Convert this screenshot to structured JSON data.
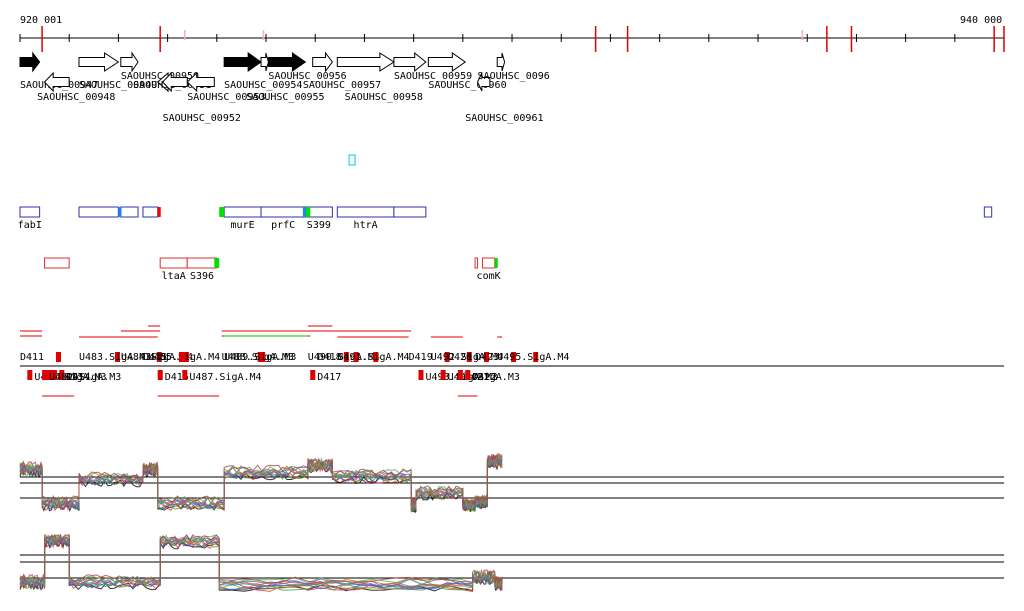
{
  "ruler": {
    "start_label": "920 001",
    "end_label": "940 000",
    "start_bp": 920001,
    "end_bp": 940000,
    "tick_step_bp": 1000,
    "red_markers_bp": [
      920450,
      922850,
      931700,
      932350,
      936400,
      936900,
      939800,
      940000
    ],
    "pink_markers_bp": [
      923350,
      924950,
      935900
    ]
  },
  "genes": [
    {
      "name": "SAOUHSC_00947",
      "start": 920001,
      "end": 920400,
      "strand": "+",
      "style": "filled",
      "label_start": 920001,
      "label_row": 0
    },
    {
      "name": "SAOUHSC_00948",
      "start": 920500,
      "end": 921000,
      "strand": "-",
      "style": "open",
      "label_start": 920350,
      "label_row": 1
    },
    {
      "name": "SAOUHSC_00949",
      "start": 921200,
      "end": 922000,
      "strand": "+",
      "style": "open",
      "label_start": 921200,
      "label_row": 0
    },
    {
      "name": "SAOUHSC_00950",
      "start": 922050,
      "end": 922400,
      "strand": "+",
      "style": "open",
      "label_start": 922050,
      "label_row": -1
    },
    {
      "name": "SAOUHSC_00951",
      "start": 922800,
      "end": 923400,
      "strand": "-",
      "style": "open",
      "label_start": 922300,
      "label_row": 0
    },
    {
      "name": "SAOUHSC_00952",
      "start": 922900,
      "end": 923400,
      "strand": "-",
      "style": "open",
      "label_start": 922900,
      "label_row": 2
    },
    {
      "name": "SAOUHSC_00953",
      "start": 923400,
      "end": 923950,
      "strand": "-",
      "style": "open",
      "label_start": 923400,
      "label_row": 1
    },
    {
      "name": "SAOUHSC_00954",
      "start": 924150,
      "end": 924900,
      "strand": "+",
      "style": "filled",
      "label_start": 924150,
      "label_row": 0
    },
    {
      "name": "SAOUHSC_00955",
      "start": 924900,
      "end": 925050,
      "strand": "+",
      "style": "open",
      "label_start": 924600,
      "label_row": 1
    },
    {
      "name": "SAOUHSC_00956",
      "start": 925050,
      "end": 925800,
      "strand": "+",
      "style": "filled",
      "label_start": 925050,
      "label_row": -1
    },
    {
      "name": "SAOUHSC_00957",
      "start": 925950,
      "end": 926350,
      "strand": "+",
      "style": "open",
      "label_start": 925750,
      "label_row": 0
    },
    {
      "name": "SAOUHSC_00958",
      "start": 926450,
      "end": 927600,
      "strand": "+",
      "style": "open",
      "label_start": 926600,
      "label_row": 1
    },
    {
      "name": "SAOUHSC_00959",
      "start": 927600,
      "end": 928250,
      "strand": "+",
      "style": "open",
      "label_start": 927600,
      "label_row": -1
    },
    {
      "name": "SAOUHSC_00960",
      "start": 928300,
      "end": 929050,
      "strand": "+",
      "style": "open",
      "label_start": 928300,
      "label_row": 0
    },
    {
      "name": "SAOUHSC_00961",
      "start": 929300,
      "end": 929550,
      "strand": "-",
      "style": "open",
      "label_start": 929050,
      "label_row": 3
    },
    {
      "name": "SAOUHSC_00962",
      "start": 929700,
      "end": 929850,
      "strand": "+",
      "style": "open",
      "label_start": 929300,
      "label_row": -1
    }
  ],
  "gene_labels": {
    "SAOUHSC_00962": "SAOUHSC_0096"
  },
  "operon_track_1": {
    "cyan_marker_bp": 926750,
    "features": [
      {
        "start": 920001,
        "end": 920400,
        "color": "#3030b0",
        "label": "fabI"
      },
      {
        "start": 921200,
        "end": 922000,
        "color": "#3030b0",
        "label": ""
      },
      {
        "start": 922050,
        "end": 922400,
        "color": "#3030b0",
        "label": ""
      },
      {
        "start": 922500,
        "end": 922800,
        "color": "#3030b0",
        "label": ""
      },
      {
        "start": 924150,
        "end": 924900,
        "color": "#3030b0",
        "label": "murE"
      },
      {
        "start": 924900,
        "end": 925800,
        "color": "#3030b0",
        "label": "prfC"
      },
      {
        "start": 925800,
        "end": 926350,
        "color": "#3030b0",
        "label": "S399"
      },
      {
        "start": 926450,
        "end": 927600,
        "color": "#3030b0",
        "label": "htrA"
      },
      {
        "start": 927600,
        "end": 928250,
        "color": "#3030b0",
        "label": ""
      },
      {
        "start": 939600,
        "end": 939750,
        "color": "#3030b0",
        "label": ""
      }
    ],
    "boxes": [
      {
        "start": 922000,
        "end": 922050,
        "color": "#2080ff"
      },
      {
        "start": 922800,
        "end": 922850,
        "color": "#ff0000"
      },
      {
        "start": 924050,
        "end": 924150,
        "color": "#00dd00"
      },
      {
        "start": 925800,
        "end": 925900,
        "color": "#00dd00"
      },
      {
        "start": 925750,
        "end": 925800,
        "color": "#2080ff"
      }
    ]
  },
  "operon_track_2": {
    "features": [
      {
        "start": 920500,
        "end": 921000,
        "color": "#e03030",
        "label": ""
      },
      {
        "start": 922850,
        "end": 923400,
        "color": "#e03030",
        "label": "ltaA"
      },
      {
        "start": 923400,
        "end": 924000,
        "color": "#e03030",
        "label": "S396"
      },
      {
        "start": 929250,
        "end": 929300,
        "color": "#e03030",
        "label": ""
      },
      {
        "start": 929400,
        "end": 929650,
        "color": "#e03030",
        "label": "comK"
      }
    ],
    "boxes": [
      {
        "start": 923950,
        "end": 924050,
        "color": "#00dd00"
      },
      {
        "start": 929650,
        "end": 929700,
        "color": "#00dd00"
      }
    ]
  },
  "tu_track": {
    "labels_above": [
      {
        "text": "D411",
        "bp": 920001
      },
      {
        "text": "U483.SigA.M3",
        "bp": 921200
      },
      {
        "text": "U484.SigA.M4",
        "bp": 922050
      },
      {
        "text": "U485.SigA.M4",
        "bp": 922600
      },
      {
        "text": "D415",
        "bp": 922500
      },
      {
        "text": "U488.SigA.M3",
        "bp": 924100
      },
      {
        "text": "U489.SigA.M3",
        "bp": 924150
      },
      {
        "text": "U490.SigA.M4",
        "bp": 925850
      },
      {
        "text": "D418",
        "bp": 926050
      },
      {
        "text": "U491.SigA.M4",
        "bp": 926450
      },
      {
        "text": "D419",
        "bp": 927900
      },
      {
        "text": "U492.SigA.M4",
        "bp": 928350
      },
      {
        "text": "D420",
        "bp": 928700
      },
      {
        "text": "D423",
        "bp": 929250
      },
      {
        "text": "U495.SigA.M4",
        "bp": 929700
      }
    ],
    "labels_below": [
      {
        "text": "U481.SigA.M3",
        "bp": 920150
      },
      {
        "text": "D412",
        "bp": 920550
      },
      {
        "text": "D413",
        "bp": 920650
      },
      {
        "text": "D414",
        "bp": 920800
      },
      {
        "text": "U482.SigA.M3",
        "bp": 920450
      },
      {
        "text": "D416",
        "bp": 922800
      },
      {
        "text": "U487.SigA.M4",
        "bp": 923300
      },
      {
        "text": "D417",
        "bp": 925900
      },
      {
        "text": "U493.SigA.M3",
        "bp": 928100
      },
      {
        "text": "U494.SigA.M3",
        "bp": 928550
      },
      {
        "text": "D421",
        "bp": 928900
      },
      {
        "text": "D422",
        "bp": 929050
      }
    ]
  },
  "expression_tracks": [
    {
      "name": "forward",
      "segments": [
        [
          920001,
          920450,
          0.72
        ],
        [
          920450,
          921200,
          0.15
        ],
        [
          921200,
          922500,
          0.55
        ],
        [
          922500,
          922800,
          0.72
        ],
        [
          922800,
          924150,
          0.15
        ],
        [
          924150,
          925850,
          0.66
        ],
        [
          925850,
          926350,
          0.78
        ],
        [
          926350,
          927950,
          0.6
        ],
        [
          927950,
          928050,
          0.12
        ],
        [
          928050,
          929000,
          0.32
        ],
        [
          929000,
          929250,
          0.12
        ],
        [
          929250,
          929500,
          0.18
        ],
        [
          929500,
          929800,
          0.85
        ]
      ]
    },
    {
      "name": "reverse",
      "segments": [
        [
          920001,
          920500,
          0.22
        ],
        [
          920500,
          921000,
          0.92
        ],
        [
          921000,
          922850,
          0.22
        ],
        [
          922850,
          924050,
          0.9
        ],
        [
          924050,
          929200,
          0.18
        ],
        [
          929200,
          929650,
          0.3
        ],
        [
          929650,
          929800,
          0.2
        ]
      ]
    }
  ]
}
